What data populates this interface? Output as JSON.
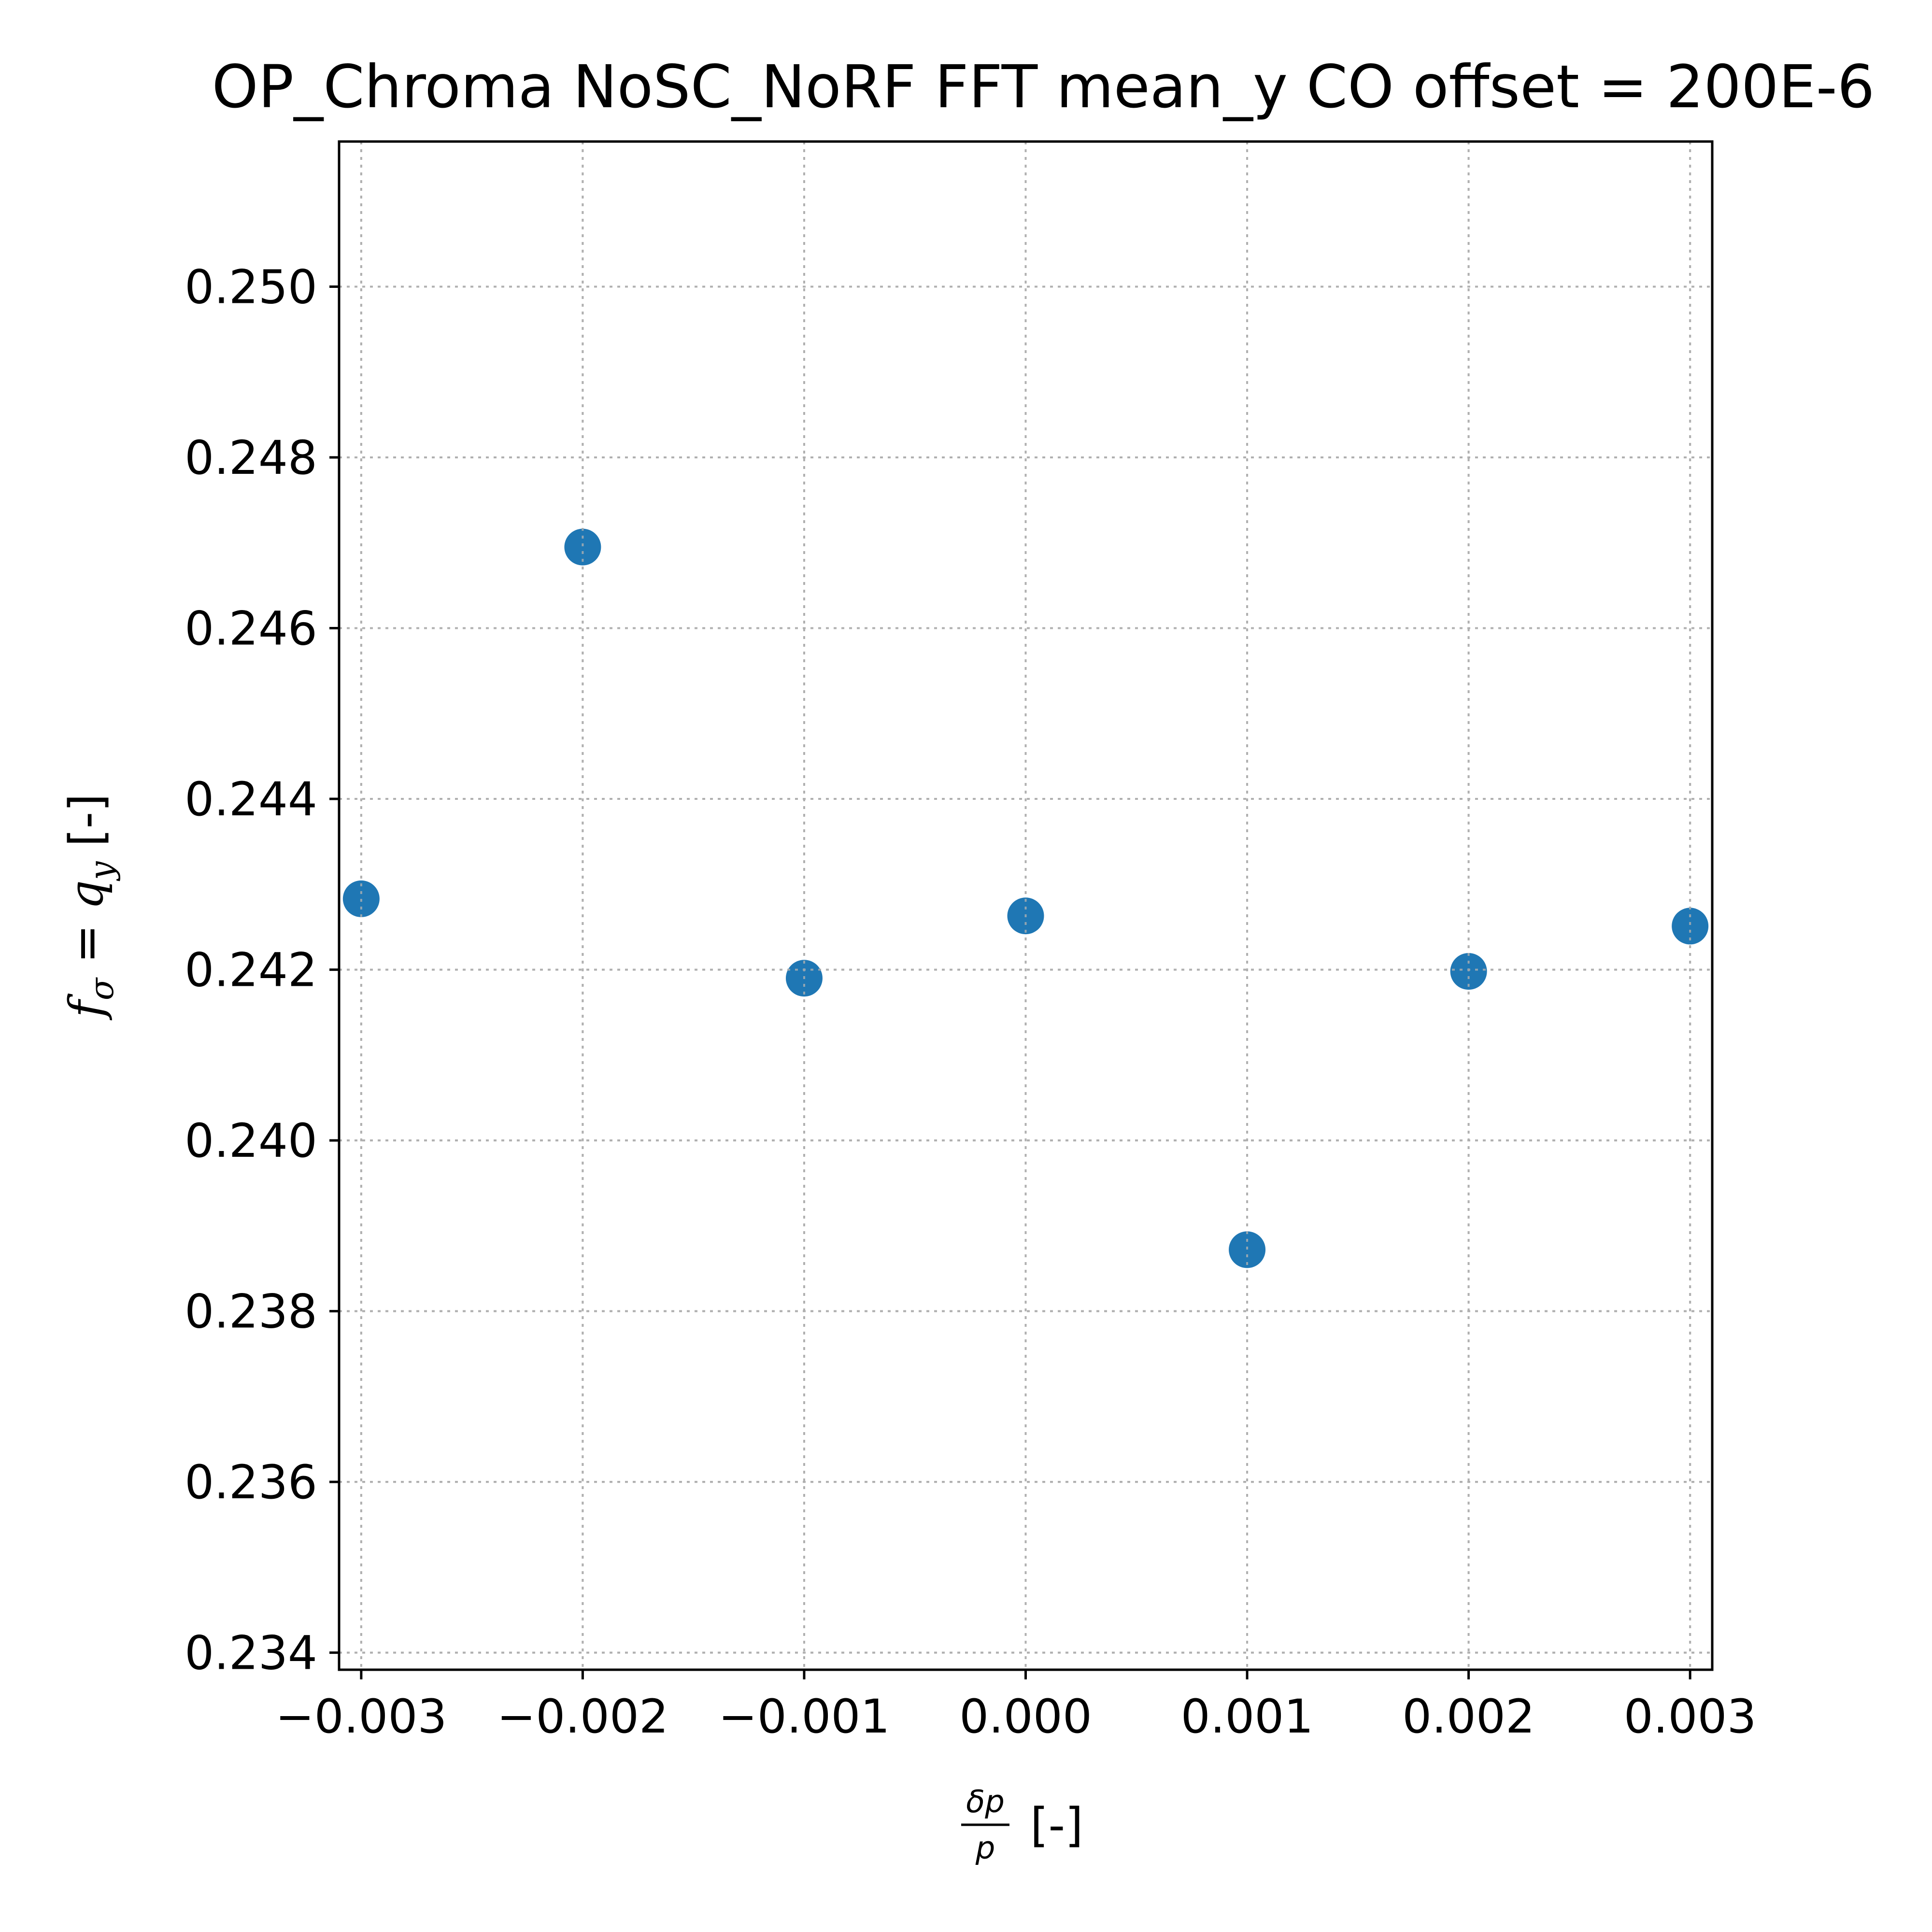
{
  "chart_data": {
    "type": "scatter",
    "title": "OP_Chroma NoSC_NoRF FFT mean_y CO offset = 200E-6",
    "xlabel": {
      "numerator": "δp",
      "denominator": "p",
      "unit": "[-]"
    },
    "ylabel": {
      "f": "f",
      "sub_sigma": "σ",
      "eq": " = ",
      "q": "q",
      "sub_y": "y",
      "unit": " [-]"
    },
    "xlim": [
      -0.0031,
      0.0031
    ],
    "ylim": [
      0.2338,
      0.2517
    ],
    "xticks": [
      -0.003,
      -0.002,
      -0.001,
      0.0,
      0.001,
      0.002,
      0.003
    ],
    "xtick_labels": [
      "−0.003",
      "−0.002",
      "−0.001",
      "0.000",
      "0.001",
      "0.002",
      "0.003"
    ],
    "yticks": [
      0.234,
      0.236,
      0.238,
      0.24,
      0.242,
      0.244,
      0.246,
      0.248,
      0.25
    ],
    "ytick_labels": [
      "0.234",
      "0.236",
      "0.238",
      "0.240",
      "0.242",
      "0.244",
      "0.246",
      "0.248",
      "0.250"
    ],
    "grid": true,
    "marker_color": "#1f77b4",
    "points": [
      {
        "x": -0.003,
        "y": 0.24283
      },
      {
        "x": -0.002,
        "y": 0.24695
      },
      {
        "x": -0.001,
        "y": 0.2419
      },
      {
        "x": 0.0,
        "y": 0.24263
      },
      {
        "x": 0.001,
        "y": 0.23872
      },
      {
        "x": 0.002,
        "y": 0.24198
      },
      {
        "x": 0.003,
        "y": 0.24251
      }
    ]
  }
}
